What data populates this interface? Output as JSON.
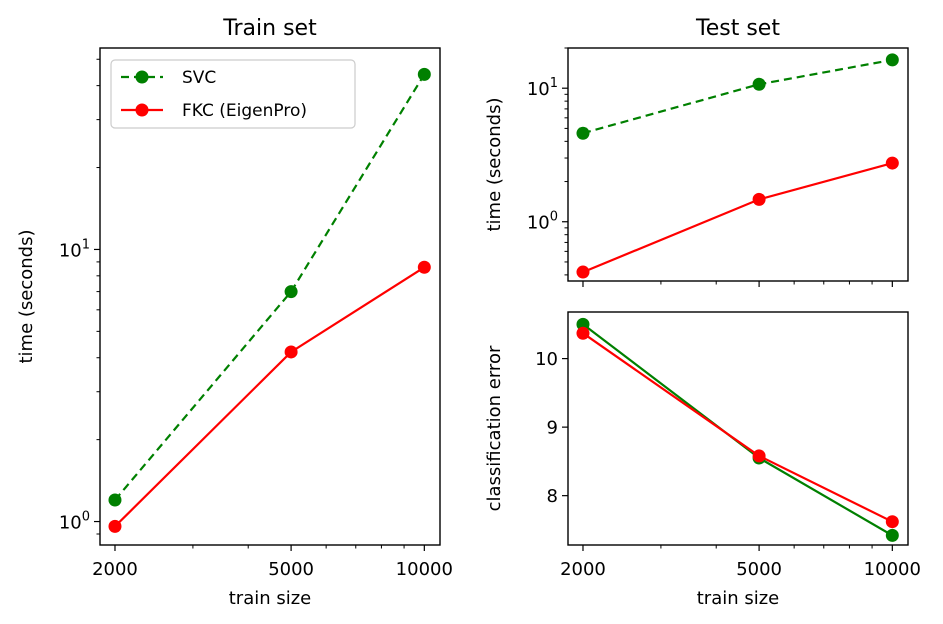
{
  "chart_data": [
    {
      "type": "line",
      "title": "Train set",
      "xlabel": "train size",
      "ylabel": "time (seconds)",
      "xscale": "log",
      "yscale": "log",
      "x": [
        2000,
        5000,
        10000
      ],
      "xticks": [
        "2000",
        "5000",
        "10000"
      ],
      "ylim": [
        0.82,
        55
      ],
      "yticks": [
        {
          "value": 1,
          "base": "10",
          "exp": "0"
        },
        {
          "value": 10,
          "base": "10",
          "exp": "1"
        }
      ],
      "legend": "top-left",
      "series": [
        {
          "name": "SVC",
          "values": [
            1.2,
            7.0,
            44
          ],
          "color": "#008000",
          "dash": true
        },
        {
          "name": "FKC (EigenPro)",
          "values": [
            0.96,
            4.2,
            8.6
          ],
          "color": "#ff0000",
          "dash": false
        }
      ]
    },
    {
      "type": "line",
      "title": "Test set",
      "xlabel": "",
      "ylabel": "time (seconds)",
      "xscale": "log",
      "yscale": "log",
      "x": [
        2000,
        5000,
        10000
      ],
      "xticks": [],
      "ylim": [
        0.36,
        20
      ],
      "yticks": [
        {
          "value": 1,
          "base": "10",
          "exp": "0"
        },
        {
          "value": 10,
          "base": "10",
          "exp": "1"
        }
      ],
      "series": [
        {
          "name": "SVC",
          "values": [
            4.6,
            10.7,
            16.3
          ],
          "color": "#008000",
          "dash": true
        },
        {
          "name": "FKC (EigenPro)",
          "values": [
            0.42,
            1.47,
            2.75
          ],
          "color": "#ff0000",
          "dash": false
        }
      ]
    },
    {
      "type": "line",
      "title": "",
      "xlabel": "train size",
      "ylabel": "classification error",
      "xscale": "log",
      "yscale": "linear",
      "x": [
        2000,
        5000,
        10000
      ],
      "xticks": [
        "2000",
        "5000",
        "10000"
      ],
      "ylim": [
        7.28,
        10.68
      ],
      "yticks": [
        {
          "value": 8,
          "label": "8"
        },
        {
          "value": 9,
          "label": "9"
        },
        {
          "value": 10,
          "label": "10"
        }
      ],
      "series": [
        {
          "name": "SVC",
          "values": [
            10.5,
            8.55,
            7.42
          ],
          "color": "#008000",
          "dash": false
        },
        {
          "name": "FKC (EigenPro)",
          "values": [
            10.37,
            8.58,
            7.62
          ],
          "color": "#ff0000",
          "dash": false
        }
      ]
    }
  ]
}
